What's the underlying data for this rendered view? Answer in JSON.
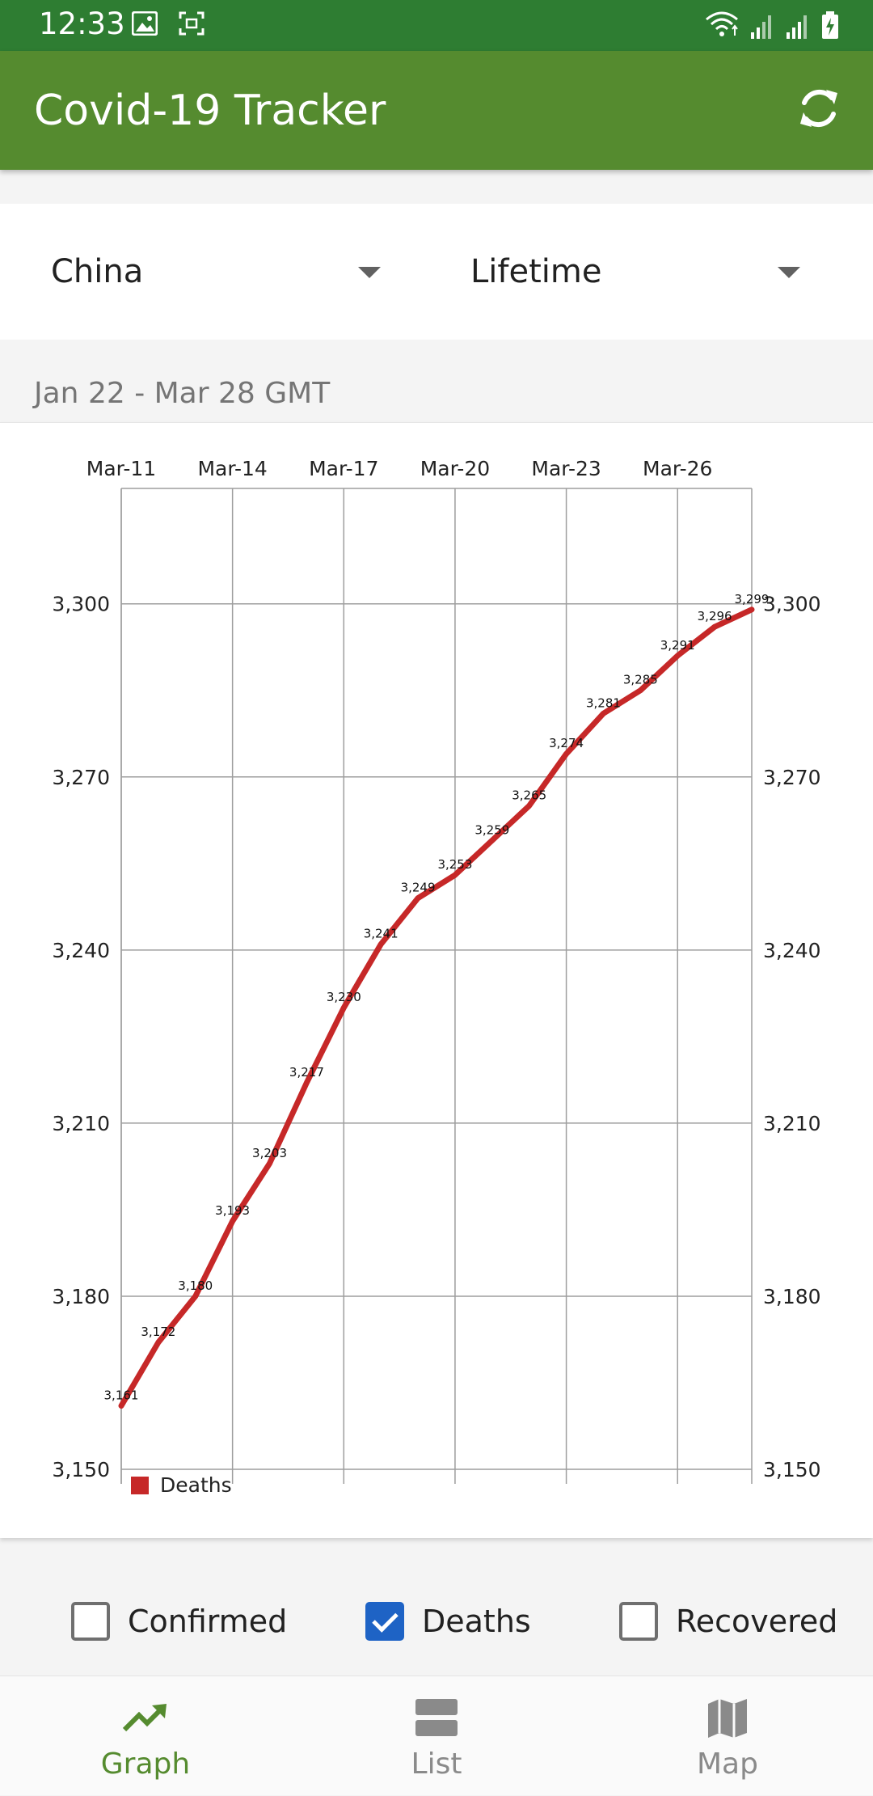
{
  "status_bar": {
    "time": "12:33",
    "icons": [
      "image-icon",
      "screenshot-icon",
      "wifi-icon",
      "signal-icon",
      "signal-icon",
      "battery-charging-icon"
    ]
  },
  "app_bar": {
    "title": "Covid-19 Tracker",
    "action_icon": "refresh-icon"
  },
  "selectors": {
    "country": "China",
    "period": "Lifetime"
  },
  "date_range": "Jan 22 - Mar 28 GMT",
  "chart_data": {
    "type": "line",
    "x": [
      "Mar-11",
      "Mar-12",
      "Mar-13",
      "Mar-14",
      "Mar-15",
      "Mar-16",
      "Mar-17",
      "Mar-18",
      "Mar-19",
      "Mar-20",
      "Mar-21",
      "Mar-22",
      "Mar-23",
      "Mar-24",
      "Mar-25",
      "Mar-26",
      "Mar-27",
      "Mar-28"
    ],
    "x_ticks": [
      "Mar-11",
      "Mar-14",
      "Mar-17",
      "Mar-20",
      "Mar-23",
      "Mar-26"
    ],
    "series": [
      {
        "name": "Deaths",
        "color": "#c62828",
        "values": [
          3161,
          3172,
          3180,
          3193,
          3203,
          3217,
          3230,
          3241,
          3249,
          3253,
          3259,
          3265,
          3274,
          3281,
          3285,
          3291,
          3296,
          3299
        ],
        "labels": [
          "3,161",
          "3,172",
          "3,180",
          "3,193",
          "3,203",
          "3,217",
          "3,230",
          "3,241",
          "3,249",
          "3,253",
          "3,259",
          "3,265",
          "3,274",
          "3,281",
          "3,285",
          "3,291",
          "3,296",
          "3,299"
        ]
      }
    ],
    "ylim": [
      3150,
      3320
    ],
    "y_ticks": [
      3150,
      3180,
      3210,
      3240,
      3270,
      3300
    ],
    "y_tick_labels": [
      "3,150",
      "3,180",
      "3,210",
      "3,240",
      "3,270",
      "3,300"
    ],
    "axes": "left and right",
    "grid": true,
    "legend": "bottom-left"
  },
  "toggles": [
    {
      "label": "Confirmed",
      "checked": false
    },
    {
      "label": "Deaths",
      "checked": true
    },
    {
      "label": "Recovered",
      "checked": false
    }
  ],
  "bottom_nav": {
    "items": [
      {
        "label": "Graph",
        "icon": "trending-up-icon",
        "active": true
      },
      {
        "label": "List",
        "icon": "list-icon",
        "active": false
      },
      {
        "label": "Map",
        "icon": "map-icon",
        "active": false
      }
    ],
    "active_color": "#558b2f",
    "inactive_color": "#8a8a8a"
  }
}
